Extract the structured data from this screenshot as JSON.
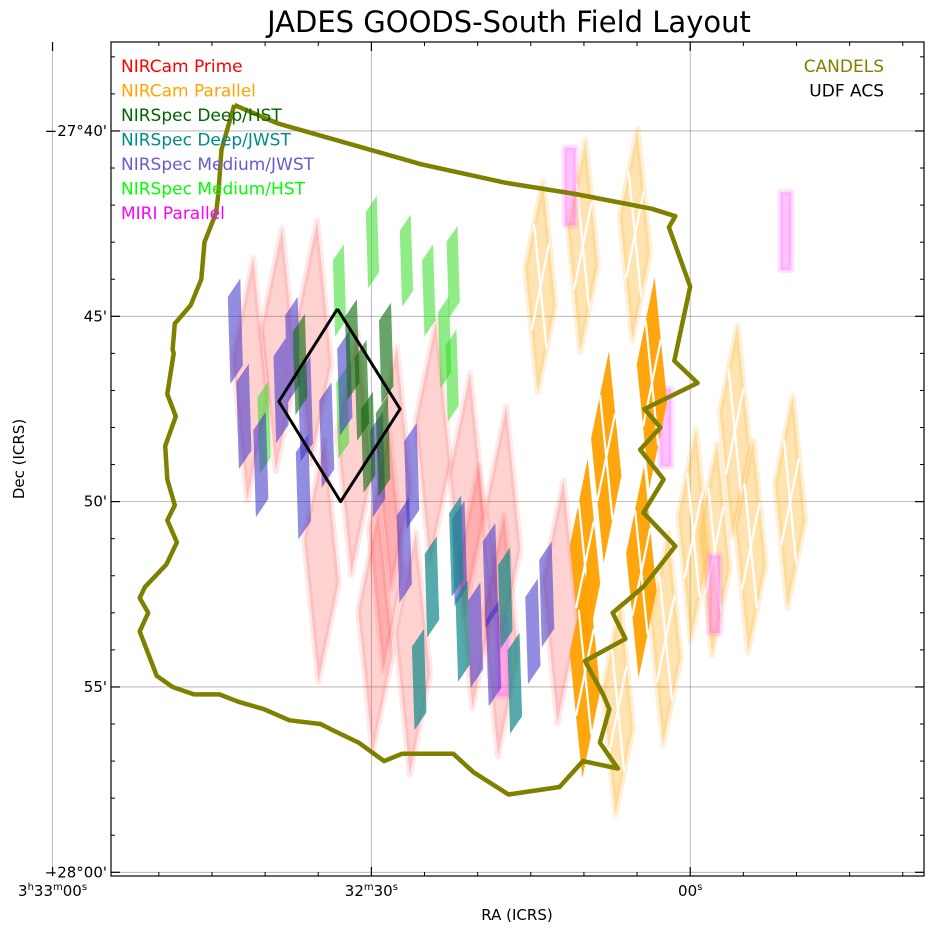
{
  "chart_data": {
    "type": "scatter",
    "title": "JADES GOODS-South Field Layout",
    "xlabel": "RA (ICRS)",
    "ylabel": "Dec (ICRS)",
    "x_unit": "RA seconds after 3h32m00s",
    "y_unit": "Dec arcminutes below -27°",
    "xlim": [
      54.5,
      -22.0
    ],
    "ylim": [
      60.1,
      37.6
    ],
    "x_ticks": [
      {
        "value": 60,
        "label": "3h33m00s"
      },
      {
        "value": 30,
        "label": "32m30s"
      },
      {
        "value": 0,
        "label": "00s"
      }
    ],
    "y_ticks": [
      {
        "value": 40,
        "label": "−27°40'"
      },
      {
        "value": 45,
        "label": "45'"
      },
      {
        "value": 50,
        "label": "50'"
      },
      {
        "value": 55,
        "label": "55'"
      },
      {
        "value": 60,
        "label": "−28°00'"
      }
    ],
    "legend_left": [
      {
        "label": "NIRCam Prime",
        "color": "#ff0000"
      },
      {
        "label": "NIRCam Parallel",
        "color": "#ffa500"
      },
      {
        "label": "NIRSpec Deep/HST",
        "color": "#006400"
      },
      {
        "label": "NIRSpec Deep/JWST",
        "color": "#008b8b"
      },
      {
        "label": "NIRSpec Medium/JWST",
        "color": "#6a5acd"
      },
      {
        "label": "NIRSpec Medium/HST",
        "color": "#00ff00"
      },
      {
        "label": "MIRI Parallel",
        "color": "#ff00ff"
      }
    ],
    "legend_right": [
      {
        "label": "CANDELS",
        "color": "#808000"
      },
      {
        "label": "UDF ACS",
        "color": "#000000"
      }
    ],
    "candels_outline": [
      [
        42.9,
        39.3
      ],
      [
        38.8,
        39.8
      ],
      [
        25.3,
        40.9
      ],
      [
        17.3,
        41.4
      ],
      [
        10.8,
        41.7
      ],
      [
        3.6,
        42.1
      ],
      [
        1.4,
        42.3
      ],
      [
        2.0,
        42.6
      ],
      [
        0.0,
        44.2
      ],
      [
        1.5,
        46.2
      ],
      [
        -0.7,
        46.8
      ],
      [
        4.3,
        47.5
      ],
      [
        2.8,
        48.0
      ],
      [
        4.7,
        48.6
      ],
      [
        2.5,
        49.4
      ],
      [
        4.4,
        50.3
      ],
      [
        1.4,
        51.2
      ],
      [
        4.4,
        52.3
      ],
      [
        7.3,
        53.0
      ],
      [
        6.1,
        53.7
      ],
      [
        9.9,
        54.3
      ],
      [
        8.2,
        55.2
      ],
      [
        7.6,
        55.6
      ],
      [
        8.5,
        56.5
      ],
      [
        6.8,
        57.2
      ],
      [
        10.1,
        57.0
      ],
      [
        12.3,
        57.7
      ],
      [
        17.1,
        57.9
      ],
      [
        20.4,
        57.3
      ],
      [
        22.3,
        56.8
      ],
      [
        25.8,
        56.8
      ],
      [
        27.1,
        56.8
      ],
      [
        28.8,
        57.0
      ],
      [
        31.2,
        56.5
      ],
      [
        33.4,
        56.2
      ],
      [
        34.8,
        56.0
      ],
      [
        37.7,
        55.9
      ],
      [
        40.1,
        55.6
      ],
      [
        42.5,
        55.4
      ],
      [
        44.3,
        55.2
      ],
      [
        46.7,
        55.2
      ],
      [
        48.7,
        55.0
      ],
      [
        50.2,
        54.7
      ],
      [
        51.8,
        53.5
      ],
      [
        51.0,
        53.0
      ],
      [
        51.8,
        52.6
      ],
      [
        51.3,
        52.3
      ],
      [
        49.3,
        51.7
      ],
      [
        48.3,
        51.1
      ],
      [
        49.2,
        50.5
      ],
      [
        48.5,
        50.1
      ],
      [
        49.2,
        49.4
      ],
      [
        49.4,
        48.5
      ],
      [
        48.4,
        47.7
      ],
      [
        49.2,
        47.1
      ],
      [
        48.6,
        46.0
      ],
      [
        48.7,
        45.9
      ],
      [
        48.5,
        45.2
      ],
      [
        47.0,
        44.7
      ],
      [
        46.0,
        44.0
      ],
      [
        45.7,
        43.0
      ],
      [
        44.6,
        42.2
      ],
      [
        44.4,
        41.7
      ],
      [
        44.1,
        40.5
      ],
      [
        42.9,
        39.3
      ]
    ],
    "udf_outline": [
      [
        33.2,
        44.8
      ],
      [
        27.3,
        47.5
      ],
      [
        32.9,
        50.0
      ],
      [
        38.7,
        47.3
      ],
      [
        33.2,
        44.8
      ]
    ],
    "nircam_prime": [
      [
        35.4,
        45.7,
        4.7,
        -35
      ],
      [
        41.4,
        46.7,
        4.7,
        -35
      ],
      [
        38.7,
        45.9,
        4.7,
        -35
      ],
      [
        31.6,
        48.7,
        4.7,
        -35
      ],
      [
        34.7,
        51.6,
        4.7,
        -35
      ],
      [
        28.6,
        51.3,
        4.7,
        -35
      ],
      [
        29.6,
        53.5,
        4.7,
        -35
      ],
      [
        26.1,
        54.1,
        4.7,
        -35
      ],
      [
        20.2,
        52.3,
        4.7,
        -35
      ],
      [
        17.6,
        50.7,
        4.7,
        -35
      ],
      [
        17.8,
        53.6,
        4.7,
        -35
      ],
      [
        12.2,
        52.7,
        4.7,
        -35
      ],
      [
        27.9,
        49.1,
        4.7,
        -35
      ],
      [
        24.2,
        48.4,
        4.7,
        -35
      ],
      [
        21.0,
        49.8,
        4.7,
        -35
      ]
    ],
    "nircam_parallel_dark": [
      [
        3.6,
        46.8,
        4.1,
        -35
      ],
      [
        7.9,
        48.8,
        4.1,
        -35
      ],
      [
        4.6,
        51.9,
        4.1,
        -35
      ],
      [
        9.9,
        51.7,
        4.1,
        -35
      ],
      [
        9.9,
        54.6,
        4.1,
        -35
      ]
    ],
    "nircam_parallel_light": [
      [
        10.1,
        43.1,
        4.1,
        -35
      ],
      [
        5.2,
        42.8,
        4.1,
        -35
      ],
      [
        14.1,
        44.2,
        4.1,
        -35
      ],
      [
        -4.2,
        48.1,
        4.1,
        -35
      ],
      [
        -9.4,
        50.0,
        4.1,
        -35
      ],
      [
        -2.3,
        51.3,
        4.1,
        -35
      ],
      [
        -5.7,
        51.2,
        4.1,
        -35
      ],
      [
        2.3,
        53.7,
        4.1,
        -35
      ],
      [
        6.8,
        55.6,
        4.1,
        -35
      ],
      [
        -0.3,
        50.9,
        4.1,
        -35
      ]
    ],
    "nirspec_deep_hst": [
      [
        36.7,
        46.3,
        2.3,
        -12
      ],
      [
        31.8,
        45.9,
        2.3,
        -12
      ],
      [
        28.6,
        46.0,
        2.3,
        -12
      ],
      [
        30.3,
        48.4,
        2.3,
        -12
      ],
      [
        28.9,
        48.5,
        2.3,
        -12
      ],
      [
        30.9,
        47.0,
        2.3,
        -12
      ]
    ],
    "nirspec_deep_jwst": [
      [
        24.3,
        52.3,
        2.3,
        -12
      ],
      [
        17.4,
        52.6,
        2.3,
        -12
      ],
      [
        16.5,
        54.9,
        2.3,
        -12
      ],
      [
        21.4,
        53.5,
        2.3,
        -12
      ],
      [
        25.5,
        54.8,
        2.3,
        -12
      ],
      [
        22.0,
        51.2,
        2.3,
        -12
      ]
    ],
    "nirspec_medium_jwst": [
      [
        37.4,
        45.9,
        2.4,
        -12
      ],
      [
        42.8,
        45.4,
        2.4,
        -12
      ],
      [
        36.2,
        47.5,
        2.4,
        -12
      ],
      [
        42.0,
        47.7,
        2.4,
        -12
      ],
      [
        40.4,
        49.0,
        2.4,
        -12
      ],
      [
        36.4,
        49.6,
        2.4,
        -12
      ],
      [
        34.2,
        48.2,
        2.4,
        -12
      ],
      [
        29.4,
        49.0,
        2.4,
        -12
      ],
      [
        26.2,
        49.3,
        2.4,
        -12
      ],
      [
        26.9,
        51.3,
        2.4,
        -12
      ],
      [
        21.7,
        51.4,
        2.4,
        -12
      ],
      [
        20.2,
        53.6,
        2.4,
        -12
      ],
      [
        18.8,
        52.0,
        2.4,
        -12
      ],
      [
        14.8,
        53.5,
        2.4,
        -12
      ],
      [
        13.5,
        52.5,
        2.4,
        -12
      ],
      [
        18.5,
        54.1,
        2.4,
        -12
      ],
      [
        32.5,
        46.8,
        2.4,
        -12
      ],
      [
        38.5,
        47.0,
        2.4,
        -12
      ]
    ],
    "nirspec_medium_hst": [
      [
        33.0,
        44.3,
        2.1,
        -12
      ],
      [
        26.7,
        43.5,
        2.1,
        -12
      ],
      [
        23.1,
        45.7,
        2.1,
        -12
      ],
      [
        22.4,
        46.6,
        2.1,
        -12
      ],
      [
        40.1,
        48.0,
        2.1,
        -12
      ],
      [
        32.7,
        47.6,
        2.1,
        -12
      ],
      [
        24.6,
        44.3,
        2.1,
        -12
      ],
      [
        29.9,
        43.0,
        2.1,
        -12
      ],
      [
        22.3,
        43.8,
        2.1,
        -12
      ]
    ],
    "miri_parallel": [
      [
        2.3,
        48.0,
        2.1,
        0
      ],
      [
        -9.0,
        42.7,
        2.1,
        0
      ],
      [
        11.3,
        41.5,
        2.1,
        0
      ],
      [
        17.6,
        54.2,
        2.1,
        0
      ],
      [
        -2.3,
        52.5,
        2.1,
        0
      ]
    ]
  }
}
